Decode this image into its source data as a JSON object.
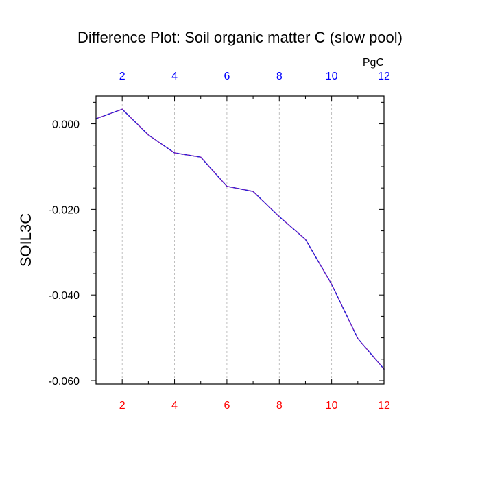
{
  "chart_data": {
    "type": "line",
    "title": "Difference Plot: Soil organic matter C (slow pool)",
    "ylabel": "SOIL3C",
    "xlabel": "",
    "top_axis_unit": "PgC",
    "x": [
      1,
      2,
      3,
      4,
      5,
      6,
      7,
      8,
      9,
      10,
      11,
      12
    ],
    "series": [
      {
        "values": [
          0.0012,
          0.0034,
          -0.0026,
          -0.0068,
          -0.0078,
          -0.0146,
          -0.0158,
          -0.0217,
          -0.027,
          -0.0375,
          -0.0502,
          -0.0573
        ]
      }
    ],
    "xlim": [
      1,
      12
    ],
    "ylim": [
      -0.0608,
      0.0065
    ],
    "x_ticks": [
      2,
      4,
      6,
      8,
      10,
      12
    ],
    "x_minor_ticks": [
      1,
      3,
      5,
      7,
      9,
      11
    ],
    "y_ticks": [
      0.0,
      -0.02,
      -0.04,
      -0.06
    ],
    "y_tick_labels": [
      "0.000",
      "-0.020",
      "-0.040",
      "-0.060"
    ],
    "y_minor_step": 0.005,
    "grid": "vertical dashed at major x ticks",
    "colors": {
      "line": "#7a1fb8",
      "line_dash": "#1f1fd6",
      "bottom_tick_labels": "#ff0000",
      "top_tick_labels": "#0000ff",
      "grid": "#b0b0b0",
      "axis": "#000000"
    }
  }
}
